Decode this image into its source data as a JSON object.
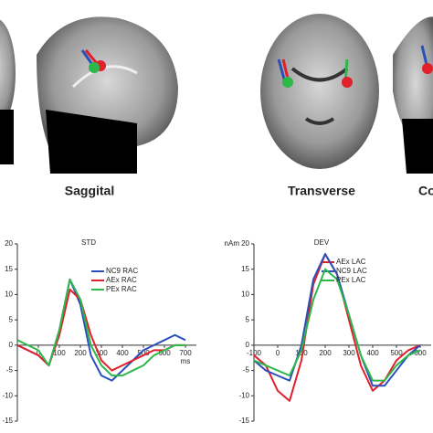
{
  "views": [
    "Saggital",
    "Transverse",
    "Co"
  ],
  "chart_data": [
    {
      "type": "line",
      "title": "STD",
      "x_label": "ms",
      "x": [
        -100,
        -50,
        0,
        50,
        100,
        150,
        200,
        250,
        300,
        350,
        400,
        450,
        500,
        550,
        600,
        650,
        700
      ],
      "series": [
        {
          "name": "NC9 RAC",
          "color": "#2a4fb8",
          "values": [
            0,
            -1,
            -2,
            -4,
            3,
            13,
            8,
            -2,
            -6,
            -7,
            -5,
            -3,
            -1,
            0,
            1,
            2,
            1
          ]
        },
        {
          "name": "AEx RAC",
          "color": "#e0202a",
          "values": [
            0,
            -1,
            -2,
            -4,
            2,
            11,
            9,
            2,
            -3,
            -5,
            -4,
            -3,
            -2,
            -1,
            -1,
            0,
            0
          ]
        },
        {
          "name": "PEx RAC",
          "color": "#2db84a",
          "values": [
            1,
            0,
            -1,
            -4,
            3,
            13,
            9,
            0,
            -4,
            -6,
            -6,
            -5,
            -4,
            -2,
            -1,
            0,
            0
          ]
        }
      ],
      "xlim": [
        -100,
        700
      ],
      "xticks": [
        0,
        100,
        200,
        300,
        400,
        500,
        600,
        700
      ],
      "ylim": [
        -15,
        20
      ],
      "yticks": [
        -15,
        -10,
        -5,
        0,
        5,
        10,
        15,
        20
      ]
    },
    {
      "type": "line",
      "title": "DEV",
      "y_label": "nAm",
      "x": [
        -100,
        -50,
        0,
        50,
        100,
        150,
        200,
        250,
        300,
        350,
        400,
        450,
        500,
        550,
        600
      ],
      "series": [
        {
          "name": "AEx LAC",
          "color": "#e0202a",
          "values": [
            -2,
            -4,
            -9,
            -11,
            -3,
            12,
            18,
            14,
            5,
            -4,
            -9,
            -7,
            -3,
            -1,
            0
          ]
        },
        {
          "name": "NC9 LAC",
          "color": "#2a4fb8",
          "values": [
            -3,
            -5,
            -6,
            -7,
            0,
            13,
            18,
            14,
            6,
            -2,
            -8,
            -8,
            -5,
            -2,
            0
          ]
        },
        {
          "name": "PEx LAC",
          "color": "#2db84a",
          "values": [
            -3,
            -4,
            -5,
            -6,
            -1,
            9,
            15,
            13,
            6,
            -2,
            -7,
            -7,
            -4,
            -2,
            -1
          ]
        }
      ],
      "xlim": [
        -100,
        600
      ],
      "xticks": [
        -100,
        0,
        100,
        200,
        300,
        400,
        500,
        600
      ],
      "ylim": [
        -15,
        20
      ],
      "yticks": [
        -15,
        -10,
        -5,
        0,
        5,
        10,
        15,
        20
      ]
    }
  ]
}
